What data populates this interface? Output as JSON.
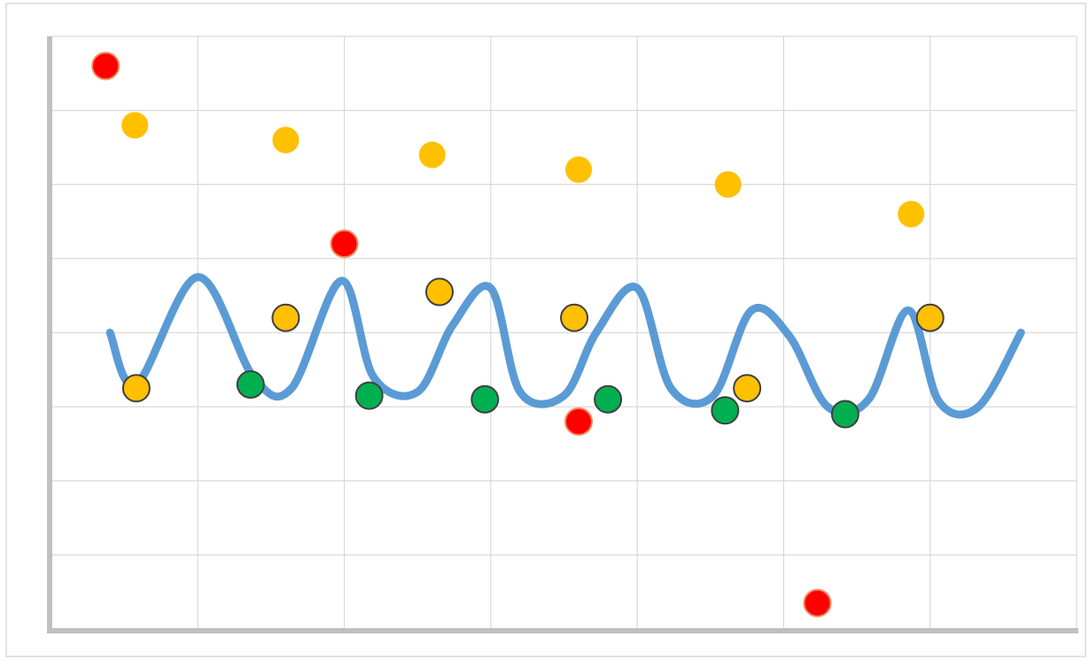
{
  "chart_data": {
    "type": "scatter",
    "title": "",
    "xlabel": "",
    "ylabel": "",
    "xlim": [
      0,
      7
    ],
    "ylim": [
      0,
      8
    ],
    "grid": true,
    "axis_color": "#c0c0c0",
    "grid_color": "#d9d9d9",
    "line": {
      "name": "",
      "color": "#5b9bd5",
      "x": [
        0.4,
        0.58,
        1.0,
        1.38,
        1.64,
        1.98,
        2.2,
        2.5,
        2.74,
        3.0,
        3.2,
        3.5,
        3.72,
        4.0,
        4.23,
        4.52,
        4.78,
        5.04,
        5.3,
        5.58,
        5.85,
        6.06,
        6.33,
        6.62
      ],
      "y": [
        4.0,
        3.3,
        4.75,
        3.4,
        3.25,
        4.7,
        3.4,
        3.2,
        4.1,
        4.6,
        3.2,
        3.15,
        4.0,
        4.6,
        3.25,
        3.15,
        4.3,
        3.95,
        3.0,
        3.1,
        4.3,
        3.07,
        3.0,
        4.0
      ]
    },
    "series": [
      {
        "name": "",
        "color": "#ff0000",
        "x": [
          0.37,
          2.0,
          3.6,
          5.23
        ],
        "y": [
          7.6,
          5.2,
          2.8,
          0.35
        ]
      },
      {
        "name": "",
        "color": "#ffc000",
        "x": [
          0.57,
          1.6,
          2.6,
          3.6,
          4.62,
          5.87
        ],
        "y": [
          6.8,
          6.6,
          6.4,
          6.2,
          6.0,
          5.6
        ]
      },
      {
        "name": "",
        "color": "#ffc000",
        "x": [
          0.58,
          1.6,
          2.65,
          3.57,
          4.75,
          6.0
        ],
        "y": [
          3.25,
          4.2,
          4.55,
          4.2,
          3.25,
          4.2
        ]
      },
      {
        "name": "",
        "color": "#00b050",
        "x": [
          1.36,
          2.17,
          2.96,
          3.8,
          4.6,
          5.42
        ],
        "y": [
          3.3,
          3.15,
          3.1,
          3.1,
          2.95,
          2.9
        ]
      }
    ]
  }
}
